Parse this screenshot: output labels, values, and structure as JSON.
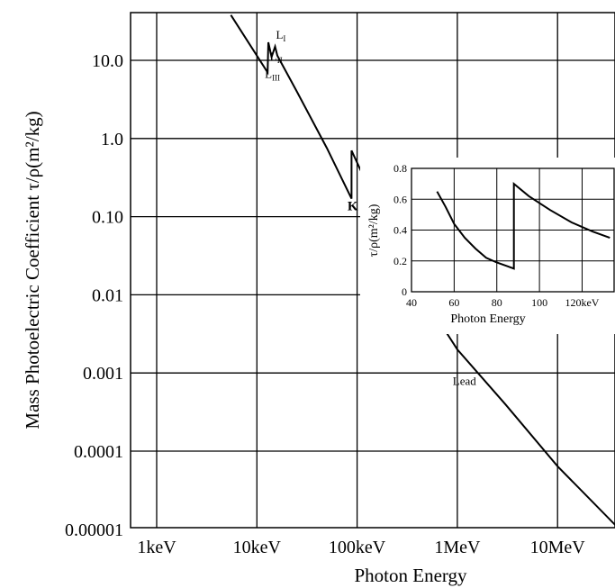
{
  "chart_data": [
    {
      "type": "line",
      "xlabel": "Photon Energy",
      "ylabel": "Mass Photoelectric Coefficient τ/ρ(m²/kg)",
      "x_scale": "log",
      "y_scale": "log",
      "xlim_keV": [
        1,
        60000
      ],
      "ylim": [
        1e-05,
        50
      ],
      "grid": true,
      "x_ticks": [
        {
          "value_keV": 1,
          "label": "1keV"
        },
        {
          "value_keV": 10,
          "label": "10keV"
        },
        {
          "value_keV": 100,
          "label": "100keV"
        },
        {
          "value_keV": 1000,
          "label": "1MeV"
        },
        {
          "value_keV": 10000,
          "label": "10MeV"
        }
      ],
      "y_ticks": [
        {
          "value": 10,
          "label": "10.0"
        },
        {
          "value": 1,
          "label": "1.0"
        },
        {
          "value": 0.1,
          "label": "0.10"
        },
        {
          "value": 0.01,
          "label": "0.01"
        },
        {
          "value": 0.001,
          "label": "0.001"
        },
        {
          "value": 0.0001,
          "label": "0.0001"
        },
        {
          "value": 1e-05,
          "label": "0.00001"
        }
      ],
      "series": [
        {
          "name": "Lead",
          "points_keV": [
            [
              5.5,
              38
            ],
            [
              12.8,
              7.0
            ],
            [
              13.0,
              17.0
            ],
            [
              14.0,
              11.0
            ],
            [
              15.2,
              15.0
            ],
            [
              16.0,
              11.5
            ],
            [
              25.0,
              4.0
            ],
            [
              50.0,
              0.75
            ],
            [
              88.0,
              0.17
            ],
            [
              88.0,
              0.7
            ],
            [
              150.0,
              0.16
            ],
            [
              300.0,
              0.028
            ],
            [
              600.0,
              0.0055
            ],
            [
              1000.0,
              0.002
            ],
            [
              3000.0,
              0.0004
            ],
            [
              10000.0,
              6.4e-05
            ],
            [
              40000.0,
              1.05e-05
            ]
          ]
        }
      ],
      "annotations": [
        {
          "text": "L",
          "sub": "I",
          "at_keV": 15.5,
          "at_y": 19
        },
        {
          "text": "L",
          "sub": "II",
          "at_keV": 13.5,
          "at_y": 10
        },
        {
          "text": "L",
          "sub": "III",
          "at_keV": 12.0,
          "at_y": 6.0
        },
        {
          "text": "K",
          "at_keV": 80,
          "at_y": 0.12
        },
        {
          "text": "Lead",
          "at_keV": 900,
          "at_y": 0.0007
        }
      ]
    },
    {
      "type": "line",
      "title": "",
      "xlabel": "Photon Energy",
      "ylabel": "τ/ρ(m²/kg)",
      "xlim": [
        40,
        135
      ],
      "ylim": [
        0,
        0.8
      ],
      "x_ticks": [
        "40",
        "60",
        "80",
        "100",
        "120keV"
      ],
      "x_tick_values": [
        40,
        60,
        80,
        100,
        120
      ],
      "y_ticks": [
        "0",
        "0.2",
        "0.4",
        "0.6",
        "0.8"
      ],
      "y_tick_values": [
        0,
        0.2,
        0.4,
        0.6,
        0.8
      ],
      "grid": true,
      "series": [
        {
          "name": "",
          "points": [
            [
              52,
              0.65
            ],
            [
              56,
              0.55
            ],
            [
              60,
              0.44
            ],
            [
              65,
              0.35
            ],
            [
              70,
              0.28
            ],
            [
              75,
              0.22
            ],
            [
              80,
              0.19
            ],
            [
              85,
              0.165
            ],
            [
              88,
              0.15
            ],
            [
              88,
              0.7
            ],
            [
              95,
              0.62
            ],
            [
              105,
              0.53
            ],
            [
              115,
              0.45
            ],
            [
              125,
              0.39
            ],
            [
              133,
              0.35
            ]
          ]
        }
      ]
    }
  ]
}
